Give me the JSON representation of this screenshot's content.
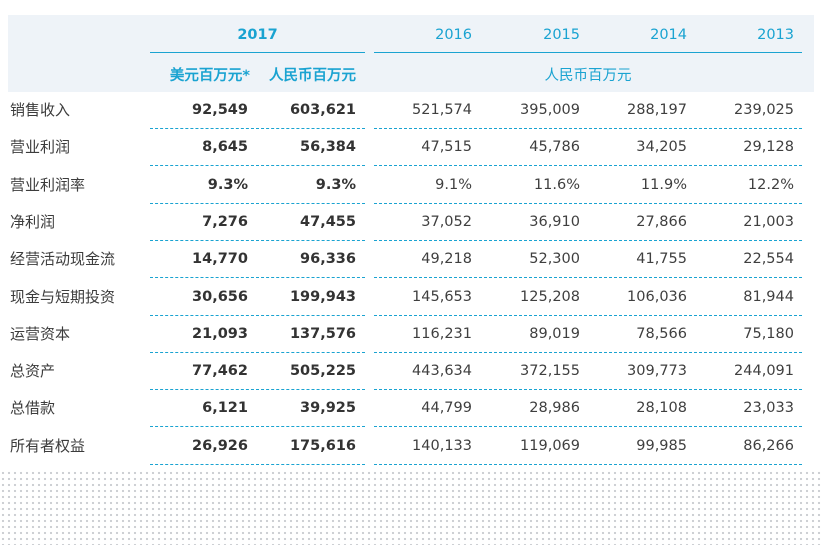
{
  "header": {
    "years": [
      "2017",
      "2016",
      "2015",
      "2014",
      "2013"
    ],
    "unit_usd": "美元百万元*",
    "unit_rmb": "人民币百万元",
    "unit_rmb_history": "人民币百万元"
  },
  "rows": [
    {
      "label": "销售收入",
      "values": [
        "92,549",
        "603,621",
        "521,574",
        "395,009",
        "288,197",
        "239,025"
      ]
    },
    {
      "label": "营业利润",
      "values": [
        "8,645",
        "56,384",
        "47,515",
        "45,786",
        "34,205",
        "29,128"
      ]
    },
    {
      "label": "营业利润率",
      "values": [
        "9.3%",
        "9.3%",
        "9.1%",
        "11.6%",
        "11.9%",
        "12.2%"
      ]
    },
    {
      "label": "净利润",
      "values": [
        "7,276",
        "47,455",
        "37,052",
        "36,910",
        "27,866",
        "21,003"
      ]
    },
    {
      "label": "经营活动现金流",
      "values": [
        "14,770",
        "96,336",
        "49,218",
        "52,300",
        "41,755",
        "22,554"
      ]
    },
    {
      "label": "现金与短期投资",
      "values": [
        "30,656",
        "199,943",
        "145,653",
        "125,208",
        "106,036",
        "81,944"
      ]
    },
    {
      "label": "运营资本",
      "values": [
        "21,093",
        "137,576",
        "116,231",
        "89,019",
        "78,566",
        "75,180"
      ]
    },
    {
      "label": "总资产",
      "values": [
        "77,462",
        "505,225",
        "443,634",
        "372,155",
        "309,773",
        "244,091"
      ]
    },
    {
      "label": "总借款",
      "values": [
        "6,121",
        "39,925",
        "44,799",
        "28,986",
        "28,108",
        "23,033"
      ]
    },
    {
      "label": "所有者权益",
      "values": [
        "26,926",
        "175,616",
        "140,133",
        "119,069",
        "99,985",
        "86,266"
      ]
    }
  ]
}
